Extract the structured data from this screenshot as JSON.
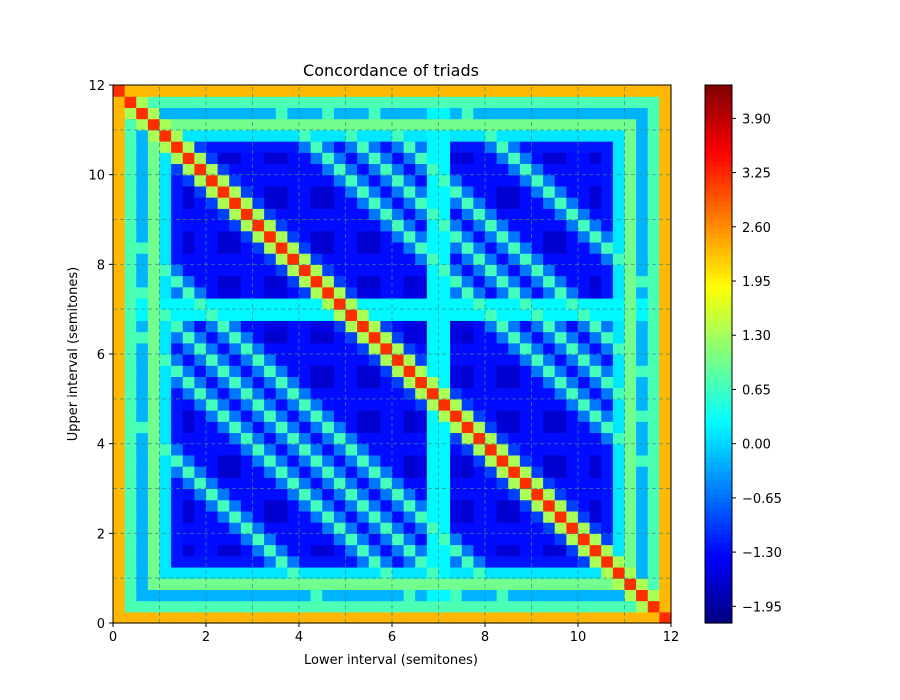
{
  "chart_data": {
    "type": "heatmap",
    "title": "Concordance of triads",
    "xlabel": "Lower interval (semitones)",
    "ylabel": "Upper interval (semitones)",
    "xlim": [
      0,
      12
    ],
    "ylim": [
      0,
      12
    ],
    "xticks": [
      0,
      2,
      4,
      6,
      8,
      10,
      12
    ],
    "yticks": [
      0,
      2,
      4,
      6,
      8,
      10,
      12
    ],
    "grid": true,
    "grid_minor_step": 1,
    "colormap": "jet",
    "colorbar": {
      "vmin": -2.15,
      "vmax": 4.3,
      "ticks": [
        -1.95,
        -1.3,
        -0.65,
        0.0,
        0.65,
        1.3,
        1.95,
        2.6,
        3.25,
        3.9
      ],
      "tick_labels": [
        "−1.95",
        "−1.30",
        "−0.65",
        "0.00",
        "0.65",
        "1.30",
        "1.95",
        "2.60",
        "3.25",
        "3.90"
      ]
    },
    "grid_resolution": 0.25,
    "model": {
      "base_value": -1.65,
      "edge_value": 2.6,
      "diagonal_value": 3.2,
      "unison_line_value": 1.0,
      "consonant_interval_lines": [
        3,
        4,
        5,
        7,
        8,
        9
      ],
      "consonant_line_value": 0.6,
      "secondary_interval_lines": [
        2,
        10
      ],
      "secondary_line_value": 0.2,
      "stripe_intervals": [
        1,
        2,
        3,
        4,
        5,
        6,
        8,
        9,
        10,
        11
      ],
      "stripe_value": -1.0,
      "antidiagonal_sums": [
        5,
        7,
        8,
        9,
        15,
        16,
        17,
        19
      ],
      "antidiagonal_value": 0.2
    }
  }
}
